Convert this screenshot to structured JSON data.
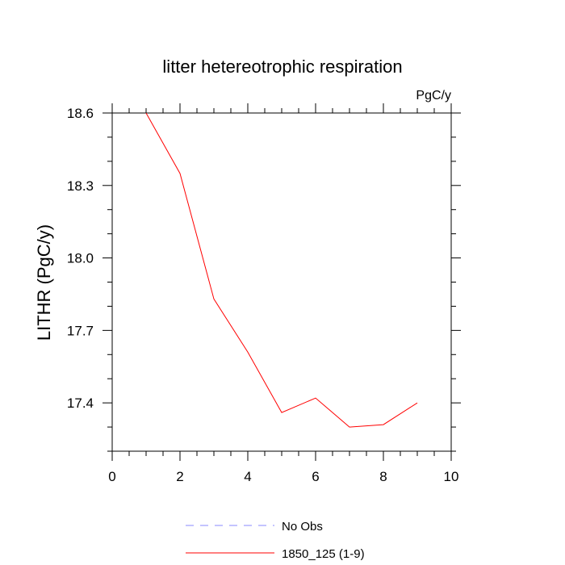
{
  "chart_data": {
    "type": "line",
    "title": "litter hetereotrophic respiration",
    "units_label": "PgC/y",
    "ylabel": "LITHR  (PgC/y)",
    "xlabel": "",
    "xlim": [
      0,
      10
    ],
    "ylim": [
      17.2,
      18.6
    ],
    "x_ticks": [
      0,
      2,
      4,
      6,
      8,
      10
    ],
    "y_ticks": [
      17.4,
      17.7,
      18.0,
      18.3,
      18.6
    ],
    "x_tick_labels": [
      "0",
      "2",
      "4",
      "6",
      "8",
      "10"
    ],
    "y_tick_labels": [
      "17.4",
      "17.7",
      "18.0",
      "18.3",
      "18.6"
    ],
    "series": [
      {
        "name": "1850_125 (1-9)",
        "color": "#ff0000",
        "style": "solid",
        "x": [
          1,
          2,
          3,
          4,
          5,
          6,
          7,
          8,
          9
        ],
        "values": [
          18.6,
          18.35,
          17.83,
          17.61,
          17.36,
          17.42,
          17.3,
          17.31,
          17.4
        ]
      }
    ],
    "legend": [
      {
        "label": "No Obs",
        "color": "#8888ff",
        "style": "dashed"
      },
      {
        "label": "1850_125 (1-9)",
        "color": "#ff0000",
        "style": "solid"
      }
    ],
    "legend_position": "bottom"
  }
}
